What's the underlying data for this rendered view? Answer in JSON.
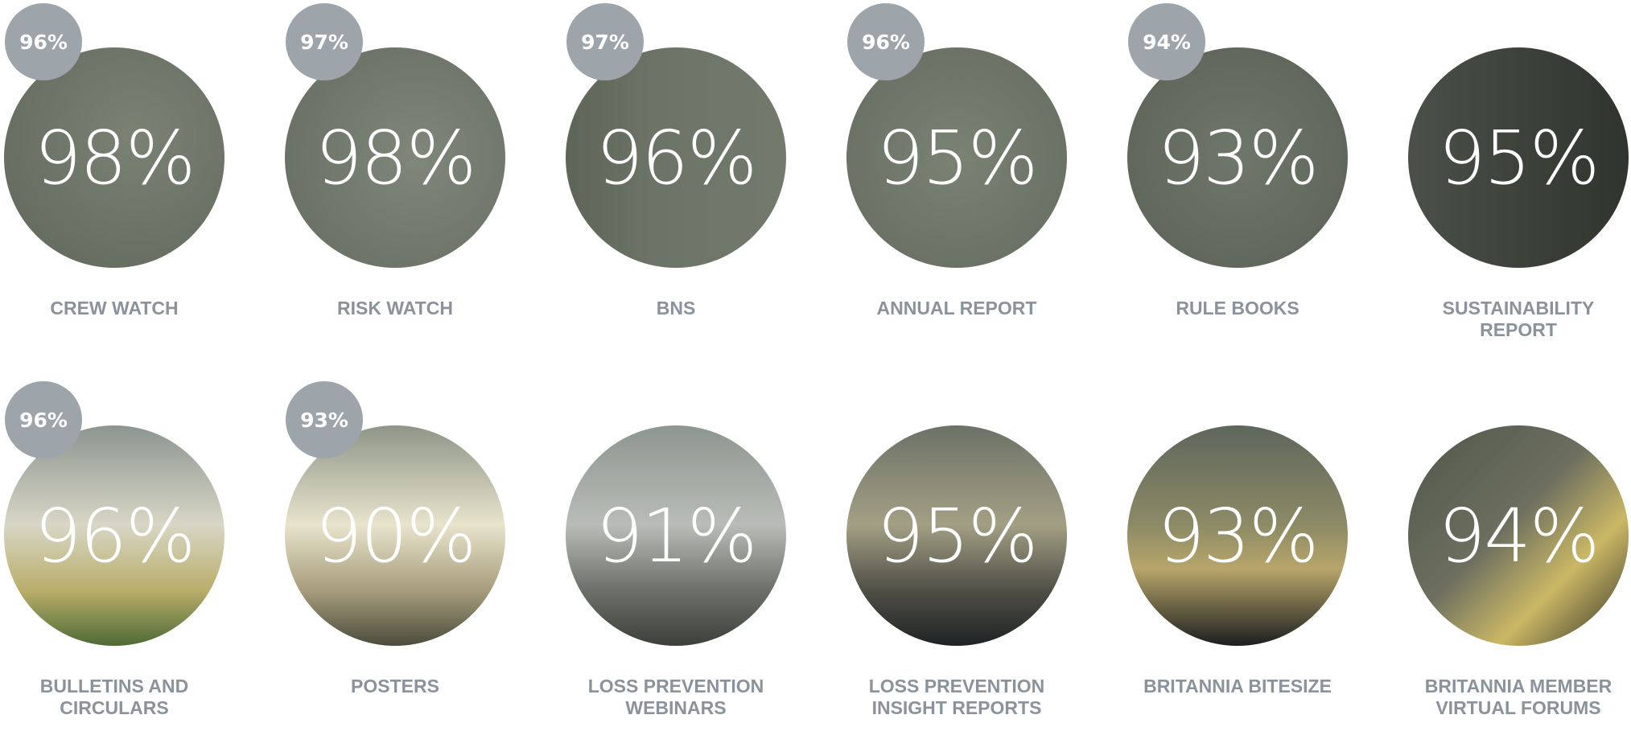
{
  "items": [
    {
      "value": "98%",
      "badge": "96%",
      "label": [
        "CREW WATCH"
      ]
    },
    {
      "value": "98%",
      "badge": "97%",
      "label": [
        "RISK WATCH"
      ]
    },
    {
      "value": "96%",
      "badge": "97%",
      "label": [
        "BNS"
      ]
    },
    {
      "value": "95%",
      "badge": "96%",
      "label": [
        "ANNUAL REPORT"
      ]
    },
    {
      "value": "93%",
      "badge": "94%",
      "label": [
        "RULE BOOKS"
      ]
    },
    {
      "value": "95%",
      "label": [
        "SUSTAINABILITY",
        "REPORT"
      ]
    },
    {
      "value": "96%",
      "badge": "96%",
      "label": [
        "BULLETINS AND",
        "CIRCULARS"
      ]
    },
    {
      "value": "90%",
      "badge": "93%",
      "label": [
        "POSTERS"
      ]
    },
    {
      "value": "91%",
      "label": [
        "LOSS PREVENTION",
        "WEBINARS"
      ]
    },
    {
      "value": "95%",
      "label": [
        "LOSS PREVENTION",
        "INSIGHT REPORTS"
      ]
    },
    {
      "value": "93%",
      "label": [
        "BRITANNIA BITESIZE"
      ]
    },
    {
      "value": "94%",
      "label": [
        "BRITANNIA MEMBER",
        "VIRTUAL FORUMS"
      ]
    }
  ]
}
